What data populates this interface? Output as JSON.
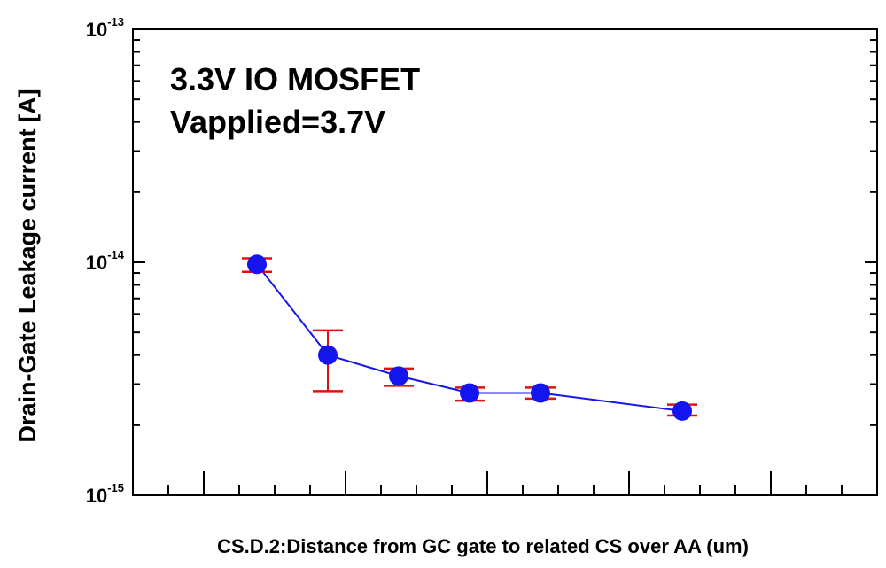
{
  "chart_data": {
    "type": "scatter",
    "title": "",
    "annotations": [
      "3.3V IO MOSFET",
      "Vapplied=3.7V"
    ],
    "xlabel": "CS.D.2:Distance from GC gate to related CS over AA (um)",
    "ylabel": "Drain-Gate Leakage current [A]",
    "y_scale": "log",
    "ylim": [
      1e-15,
      1e-13
    ],
    "y_tick_labels": [
      {
        "base": "10",
        "exp": "-13",
        "value": 1e-13
      },
      {
        "base": "10",
        "exp": "-14",
        "value": 1e-14
      },
      {
        "base": "10",
        "exp": "-15",
        "value": 1e-15
      }
    ],
    "x_tick_count": 21,
    "x_major_every": 4,
    "x_positions": [
      3,
      5,
      7,
      9,
      11,
      15
    ],
    "series": [
      {
        "values": [
          9.8e-15,
          4e-15,
          3.25e-15,
          2.75e-15,
          2.75e-15,
          2.3e-15
        ],
        "error_low": [
          9.1e-15,
          2.8e-15,
          2.95e-15,
          2.55e-15,
          2.6e-15,
          2.2e-15
        ],
        "error_high": [
          1.04e-14,
          5.1e-15,
          3.5e-15,
          2.9e-15,
          2.9e-15,
          2.45e-15
        ]
      }
    ],
    "colors": {
      "marker": "#1414ee",
      "line": "#1414ee",
      "error_bar": "#e01010",
      "axis": "#000000"
    },
    "grid": false,
    "legend": "none"
  }
}
